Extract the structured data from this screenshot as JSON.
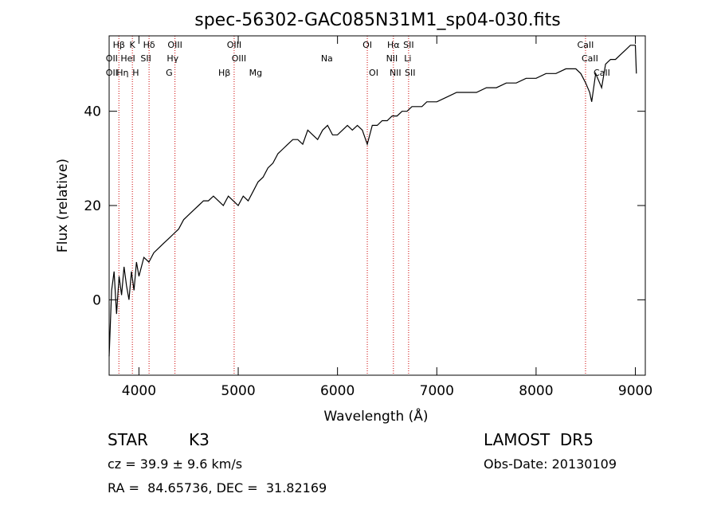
{
  "chart_data": {
    "type": "line",
    "title": "spec-56302-GAC085N31M1_sp04-030.fits",
    "xlabel": "Wavelength (Å)",
    "ylabel": "Flux (relative)",
    "xlim": [
      3700,
      9100
    ],
    "ylim": [
      -16,
      56
    ],
    "xticks": [
      4000,
      5000,
      6000,
      7000,
      8000,
      9000
    ],
    "yticks": [
      0,
      20,
      40
    ],
    "grid": false,
    "line_color": "#000000",
    "marker_color": "#cc0000",
    "series": [
      {
        "x": [
          3700,
          3725,
          3750,
          3775,
          3800,
          3825,
          3850,
          3875,
          3900,
          3925,
          3950,
          3975,
          4000,
          4050,
          4100,
          4150,
          4200,
          4250,
          4300,
          4350,
          4400,
          4450,
          4500,
          4550,
          4600,
          4650,
          4700,
          4750,
          4800,
          4850,
          4900,
          4950,
          5000,
          5050,
          5100,
          5150,
          5200,
          5250,
          5300,
          5350,
          5400,
          5450,
          5500,
          5550,
          5600,
          5650,
          5700,
          5750,
          5800,
          5850,
          5900,
          5950,
          6000,
          6050,
          6100,
          6150,
          6200,
          6250,
          6300,
          6350,
          6400,
          6450,
          6500,
          6550,
          6600,
          6650,
          6700,
          6750,
          6800,
          6850,
          6900,
          6950,
          7000,
          7100,
          7200,
          7300,
          7400,
          7500,
          7600,
          7700,
          7800,
          7900,
          8000,
          8100,
          8200,
          8300,
          8400,
          8450,
          8500,
          8540,
          8560,
          8600,
          8660,
          8700,
          8750,
          8800,
          8850,
          8900,
          8950,
          9000,
          9010
        ],
        "y": [
          -12,
          2,
          6,
          -3,
          5,
          1,
          7,
          3,
          0,
          6,
          2,
          8,
          5,
          9,
          8,
          10,
          11,
          12,
          13,
          14,
          15,
          17,
          18,
          19,
          20,
          21,
          21,
          22,
          21,
          20,
          22,
          21,
          20,
          22,
          21,
          23,
          25,
          26,
          28,
          29,
          31,
          32,
          33,
          34,
          34,
          33,
          36,
          35,
          34,
          36,
          37,
          35,
          35,
          36,
          37,
          36,
          37,
          36,
          33,
          37,
          37,
          38,
          38,
          39,
          39,
          40,
          40,
          41,
          41,
          41,
          42,
          42,
          42,
          43,
          44,
          44,
          44,
          45,
          45,
          46,
          46,
          47,
          47,
          48,
          48,
          49,
          49,
          48,
          46,
          44,
          42,
          48,
          45,
          50,
          51,
          51,
          52,
          53,
          54,
          54,
          48
        ]
      }
    ],
    "line_markers": [
      {
        "label": "Hβ",
        "wavelength": 3798,
        "row": 0
      },
      {
        "label": "K",
        "wavelength": 3934,
        "row": 0
      },
      {
        "label": "Hδ",
        "wavelength": 4102,
        "row": 0
      },
      {
        "label": "OIII",
        "wavelength": 4363,
        "row": 0
      },
      {
        "label": "OIII",
        "wavelength": 4959,
        "row": 0
      },
      {
        "label": "OI",
        "wavelength": 6300,
        "row": 0
      },
      {
        "label": "Hα",
        "wavelength": 6563,
        "row": 0
      },
      {
        "label": "SII",
        "wavelength": 6716,
        "row": 0
      },
      {
        "label": "CaII",
        "wavelength": 8498,
        "row": 0
      },
      {
        "label": "OII",
        "wavelength": 3727,
        "row": 1
      },
      {
        "label": "HeI",
        "wavelength": 3889,
        "row": 1
      },
      {
        "label": "SII",
        "wavelength": 4070,
        "row": 1
      },
      {
        "label": "Hγ",
        "wavelength": 4340,
        "row": 1
      },
      {
        "label": "OIII",
        "wavelength": 5007,
        "row": 1
      },
      {
        "label": "Na",
        "wavelength": 5893,
        "row": 1
      },
      {
        "label": "NII",
        "wavelength": 6548,
        "row": 1
      },
      {
        "label": "Li",
        "wavelength": 6708,
        "row": 1
      },
      {
        "label": "CaII",
        "wavelength": 8542,
        "row": 1
      },
      {
        "label": "OII",
        "wavelength": 3727,
        "row": 2
      },
      {
        "label": "Hη",
        "wavelength": 3835,
        "row": 2
      },
      {
        "label": "H",
        "wavelength": 3968,
        "row": 2
      },
      {
        "label": "G",
        "wavelength": 4305,
        "row": 2
      },
      {
        "label": "Hβ",
        "wavelength": 4861,
        "row": 2
      },
      {
        "label": "Mg",
        "wavelength": 5175,
        "row": 2
      },
      {
        "label": "OI",
        "wavelength": 6364,
        "row": 2
      },
      {
        "label": "NII",
        "wavelength": 6583,
        "row": 2
      },
      {
        "label": "SII",
        "wavelength": 6731,
        "row": 2
      },
      {
        "label": "CaII",
        "wavelength": 8662,
        "row": 2
      }
    ]
  },
  "info": {
    "object_class": "STAR",
    "subclass": "K3",
    "survey": "LAMOST  DR5",
    "cz": "cz = 39.9 ± 9.6 km/s",
    "obs_date": "Obs-Date: 20130109",
    "coords": "RA =  84.65736, DEC =  31.82169"
  }
}
